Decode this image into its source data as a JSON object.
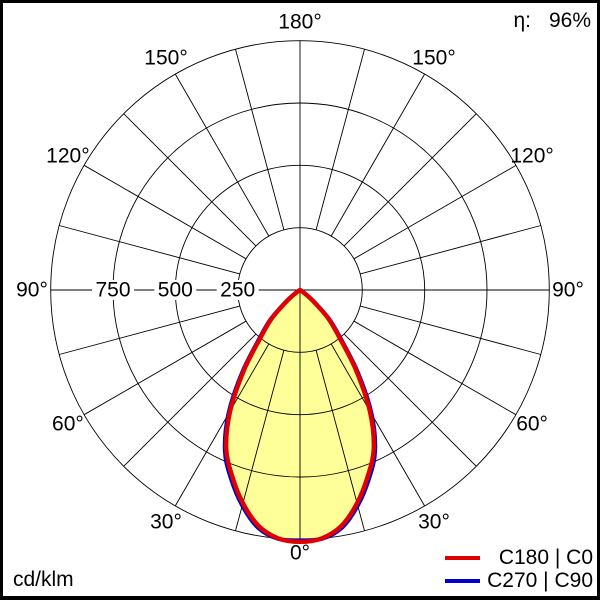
{
  "chart_data": {
    "type": "polar-photometric",
    "unit_label": "cd/klm",
    "efficiency": {
      "label": "η:",
      "value": "96%"
    },
    "angle_tick_labels": [
      "0°",
      "30°",
      "60°",
      "90°",
      "120°",
      "150°",
      "180°"
    ],
    "angle_spoke_step_deg": 15,
    "radial_rings": [
      250,
      500,
      750,
      1000
    ],
    "radial_ring_labels": [
      "250",
      "500",
      "750"
    ],
    "radial_max": 1000,
    "grid_on": true,
    "fill_color": "#ffff99",
    "grid_color": "#000000",
    "series": [
      {
        "name": "C180 | C0",
        "color": "#e00000",
        "gamma_deg": [
          0,
          5,
          10,
          15,
          20,
          25,
          30,
          35,
          40,
          45,
          50,
          55,
          60
        ],
        "intensity_cd_per_klm": [
          1010,
          1000,
          960,
          885,
          795,
          700,
          560,
          390,
          240,
          158,
          65,
          15,
          0
        ]
      },
      {
        "name": "C270 | C90",
        "color": "#0000cd",
        "gamma_deg": [
          0,
          5,
          10,
          15,
          20,
          25,
          30,
          35,
          40,
          45,
          50,
          55,
          60
        ],
        "intensity_cd_per_klm": [
          1005,
          1002,
          968,
          895,
          807,
          712,
          574,
          404,
          252,
          166,
          72,
          18,
          0
        ]
      }
    ]
  }
}
